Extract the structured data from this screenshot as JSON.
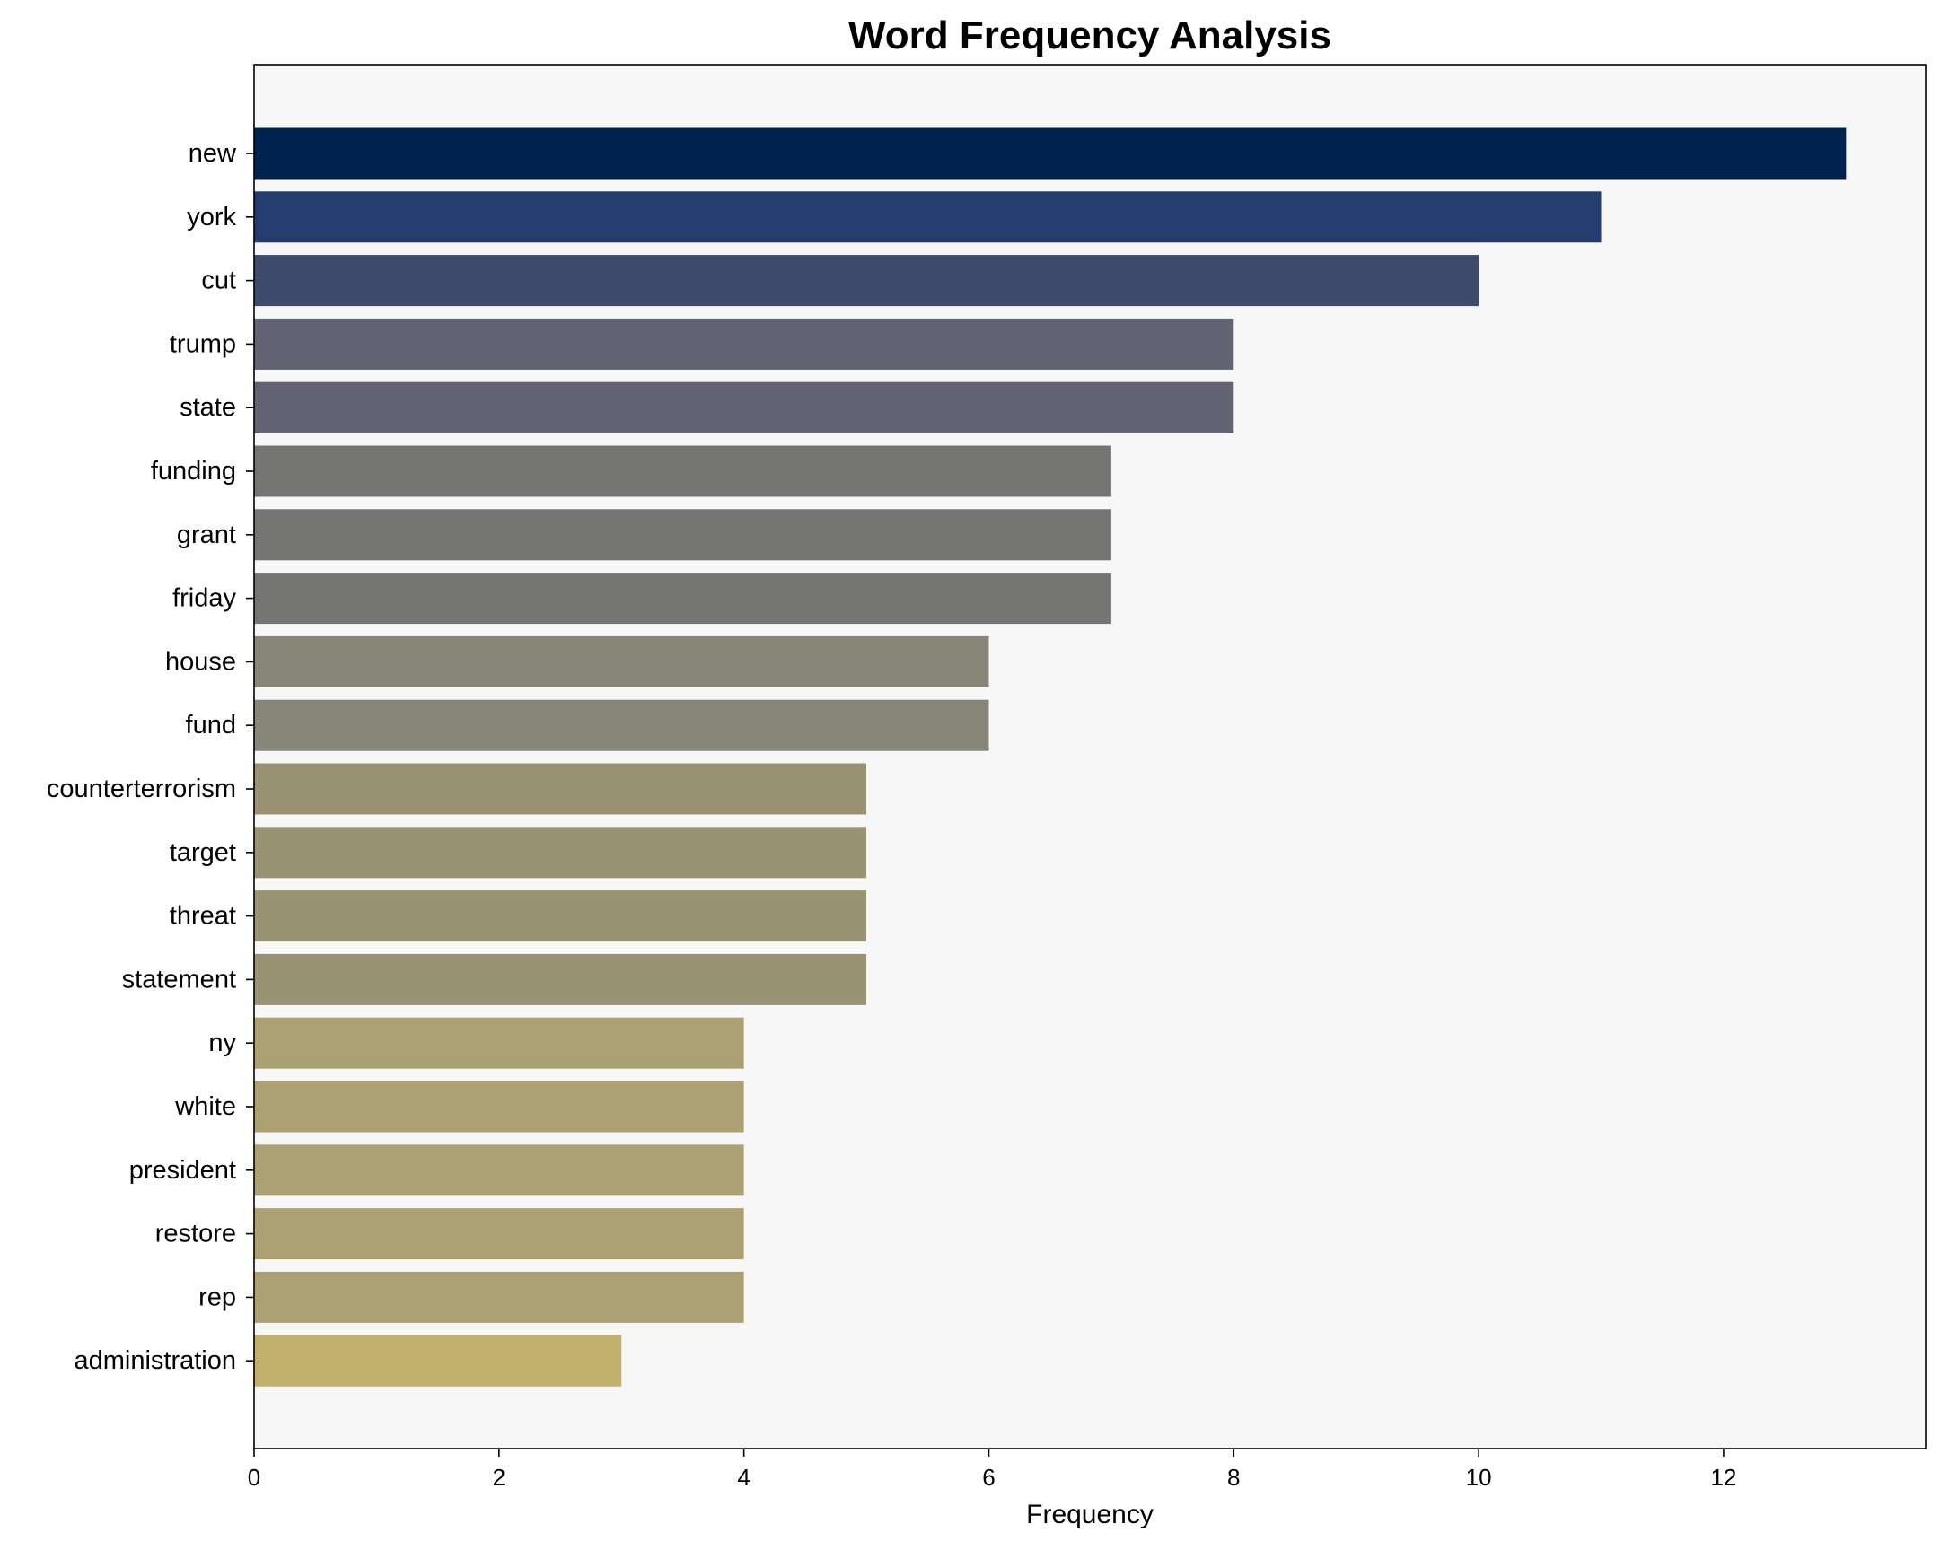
{
  "chart_data": {
    "type": "bar",
    "orientation": "horizontal",
    "title": "Word Frequency Analysis",
    "xlabel": "Frequency",
    "ylabel": "",
    "xlim": [
      0,
      13.65
    ],
    "xticks": [
      0,
      2,
      4,
      6,
      8,
      10,
      12
    ],
    "grid": false,
    "legend": "none",
    "plot_background": "#f7f7f7",
    "categories": [
      "new",
      "york",
      "cut",
      "trump",
      "state",
      "funding",
      "grant",
      "friday",
      "house",
      "fund",
      "counterterrorism",
      "target",
      "threat",
      "statement",
      "ny",
      "white",
      "president",
      "restore",
      "rep",
      "administration"
    ],
    "values": [
      13,
      11,
      10,
      8,
      8,
      7,
      7,
      7,
      6,
      6,
      5,
      5,
      5,
      5,
      4,
      4,
      4,
      4,
      4,
      3
    ],
    "colors": [
      "#00224e",
      "#253c6e",
      "#3e4b6c",
      "#626473",
      "#626473",
      "#747473",
      "#747473",
      "#747473",
      "#888579",
      "#888579",
      "#999374",
      "#999374",
      "#999374",
      "#999374",
      "#aba172",
      "#aba172",
      "#aba172",
      "#aba172",
      "#aba172",
      "#c1b06b"
    ]
  }
}
